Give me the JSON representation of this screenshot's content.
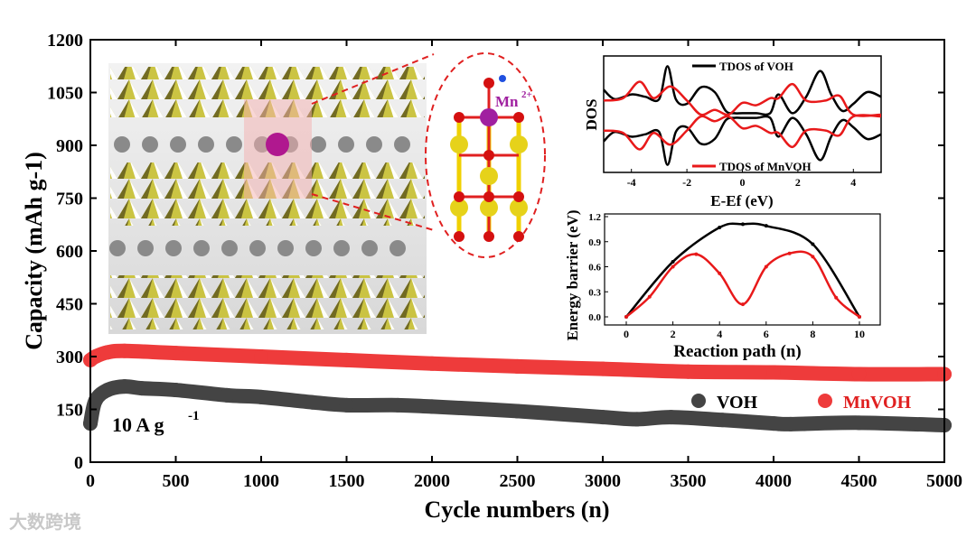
{
  "chart_data": [
    {
      "type": "scatter",
      "title": "",
      "xlabel": "Cycle numbers (n)",
      "ylabel": "Capacity (mAh g-1)",
      "xlim": [
        0,
        5000
      ],
      "ylim": [
        0,
        1200
      ],
      "xticks": [
        0,
        500,
        1000,
        1500,
        2000,
        2500,
        3000,
        3500,
        4000,
        4500,
        5000
      ],
      "yticks": [
        0,
        150,
        300,
        450,
        600,
        750,
        900,
        1050,
        1200
      ],
      "annotation": "10 A g",
      "annotation_sup": "-1",
      "legend_position": "bottom-right",
      "series": [
        {
          "name": "VOH",
          "color": "#444444",
          "x": [
            0,
            30,
            100,
            200,
            300,
            500,
            800,
            1000,
            1300,
            1500,
            1800,
            2000,
            2500,
            3000,
            3200,
            3400,
            3700,
            4000,
            4100,
            4500,
            5000
          ],
          "y": [
            110,
            175,
            205,
            215,
            210,
            205,
            190,
            185,
            170,
            162,
            162,
            158,
            145,
            128,
            122,
            128,
            120,
            110,
            108,
            112,
            105
          ]
        },
        {
          "name": "MnVOH",
          "color": "#ee3b3b",
          "x": [
            0,
            30,
            100,
            200,
            500,
            1000,
            1500,
            2000,
            2500,
            3000,
            3500,
            4000,
            4500,
            5000
          ],
          "y": [
            290,
            300,
            312,
            316,
            310,
            300,
            290,
            280,
            272,
            265,
            257,
            255,
            250,
            250
          ]
        }
      ]
    },
    {
      "type": "line",
      "title": "",
      "xlabel": "E-Ef (eV)",
      "ylabel": "DOS",
      "xlim": [
        -5,
        5
      ],
      "xticks": [
        -4,
        -2,
        0,
        2,
        4
      ],
      "series": [
        {
          "name": "TDOS of VOH",
          "color": "#000000",
          "x": [
            -5,
            -4.6,
            -4,
            -3.5,
            -3,
            -2.7,
            -2.4,
            -2,
            -1.5,
            -1,
            -0.6,
            -0.3,
            0,
            0.5,
            1,
            1.3,
            1.8,
            2.3,
            2.8,
            3.2,
            3.6,
            4,
            4.5,
            5
          ],
          "y": [
            0.5,
            0.3,
            0.4,
            0.35,
            0.3,
            1.0,
            0.3,
            0.2,
            0.55,
            0.45,
            0.05,
            0,
            0,
            0,
            0,
            0.4,
            0,
            0.35,
            0.9,
            0.4,
            0.05,
            0.2,
            0.45,
            0.35
          ]
        },
        {
          "name": "TDOS of MnVOH",
          "color": "#e8191a",
          "x": [
            -5,
            -4.3,
            -3.7,
            -3.2,
            -2.6,
            -2,
            -1.5,
            -1,
            -0.5,
            0,
            0.5,
            1,
            1.3,
            1.8,
            2.3,
            3,
            3.5,
            4,
            5
          ],
          "y": [
            0.3,
            0.35,
            0.7,
            0.35,
            0.6,
            0.3,
            0,
            0.1,
            0,
            0.25,
            0.2,
            0.35,
            0.35,
            0.65,
            0.3,
            0.3,
            0.4,
            0,
            0
          ]
        }
      ]
    },
    {
      "type": "line",
      "title": "",
      "xlabel": "Reaction path (n)",
      "ylabel": "Energy barrier (eV)",
      "xlim": [
        -1,
        11
      ],
      "ylim": [
        -0.1,
        1.2
      ],
      "xticks": [
        0,
        2,
        4,
        6,
        8,
        10
      ],
      "yticks": [
        "0.0",
        "0.3",
        "0.6",
        "0.9",
        "1.2"
      ],
      "series": [
        {
          "name": "VOH",
          "color": "#000000",
          "x": [
            0,
            2,
            4,
            5,
            6,
            8,
            10
          ],
          "y": [
            0,
            0.66,
            1.07,
            1.11,
            1.09,
            0.87,
            0
          ]
        },
        {
          "name": "MnVOH",
          "color": "#e8191a",
          "x": [
            0,
            1,
            2,
            3,
            4,
            5,
            6,
            7,
            8,
            9,
            10
          ],
          "y": [
            0,
            0.24,
            0.6,
            0.75,
            0.52,
            0.15,
            0.6,
            0.76,
            0.72,
            0.23,
            0
          ]
        }
      ]
    }
  ],
  "structure_label": "Mn",
  "structure_label_sup": "2+",
  "watermark": "大数跨境"
}
